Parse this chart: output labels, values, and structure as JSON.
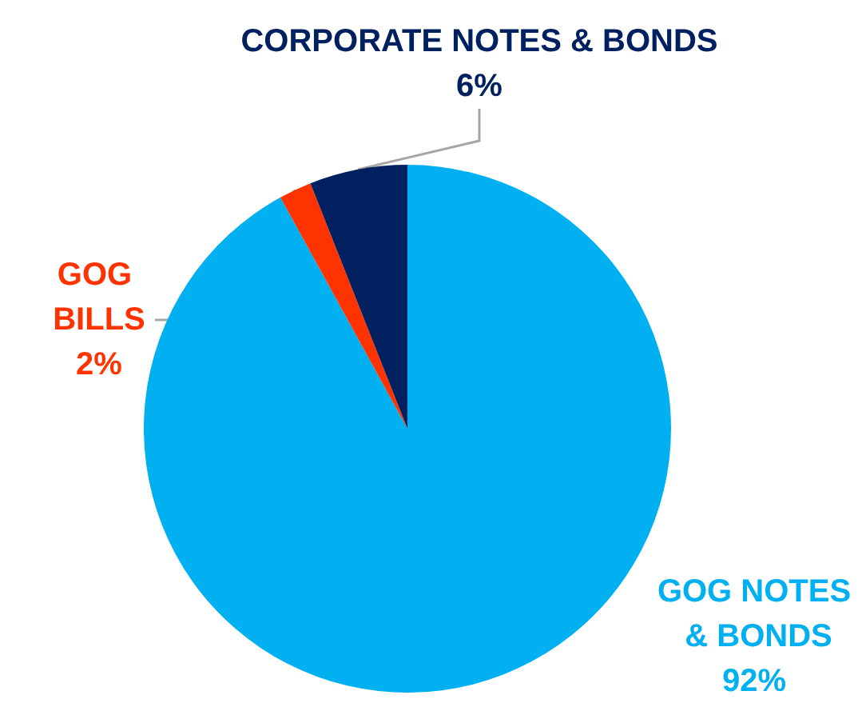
{
  "chart_data": {
    "type": "pie",
    "categories": [
      "GOG NOTES & BONDS",
      "GOG BILLS",
      "CORPORATE NOTES & BONDS"
    ],
    "values": [
      92,
      2,
      6
    ],
    "colors": [
      "#00b0f0",
      "#ff3300",
      "#002060"
    ],
    "value_labels": [
      "92%",
      "2%",
      "6%"
    ]
  }
}
